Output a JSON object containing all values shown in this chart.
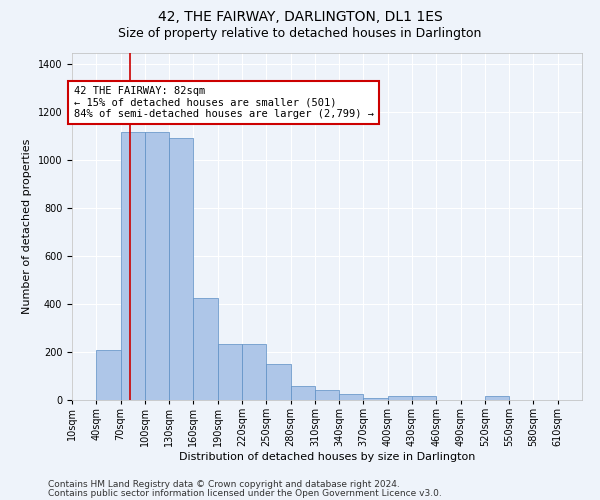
{
  "title": "42, THE FAIRWAY, DARLINGTON, DL1 1ES",
  "subtitle": "Size of property relative to detached houses in Darlington",
  "xlabel": "Distribution of detached houses by size in Darlington",
  "ylabel": "Number of detached properties",
  "categories": [
    "10sqm",
    "40sqm",
    "70sqm",
    "100sqm",
    "130sqm",
    "160sqm",
    "190sqm",
    "220sqm",
    "250sqm",
    "280sqm",
    "310sqm",
    "340sqm",
    "370sqm",
    "400sqm",
    "430sqm",
    "460sqm",
    "490sqm",
    "520sqm",
    "550sqm",
    "580sqm",
    "610sqm"
  ],
  "values": [
    0,
    210,
    1120,
    1120,
    1095,
    425,
    232,
    232,
    150,
    58,
    40,
    27,
    10,
    15,
    15,
    0,
    0,
    15,
    0,
    0,
    0
  ],
  "bar_color": "#aec6e8",
  "bar_edgecolor": "#5b8ec4",
  "background_color": "#eef3fa",
  "grid_color": "#ffffff",
  "vline_color": "#cc0000",
  "annotation_text": "42 THE FAIRWAY: 82sqm\n← 15% of detached houses are smaller (501)\n84% of semi-detached houses are larger (2,799) →",
  "annotation_box_edgecolor": "#cc0000",
  "annotation_box_facecolor": "#ffffff",
  "ylim": [
    0,
    1450
  ],
  "yticks": [
    0,
    200,
    400,
    600,
    800,
    1000,
    1200,
    1400
  ],
  "footnote1": "Contains HM Land Registry data © Crown copyright and database right 2024.",
  "footnote2": "Contains public sector information licensed under the Open Government Licence v3.0.",
  "title_fontsize": 10,
  "subtitle_fontsize": 9,
  "axis_label_fontsize": 8,
  "tick_fontsize": 7,
  "annotation_fontsize": 7.5,
  "footnote_fontsize": 6.5
}
